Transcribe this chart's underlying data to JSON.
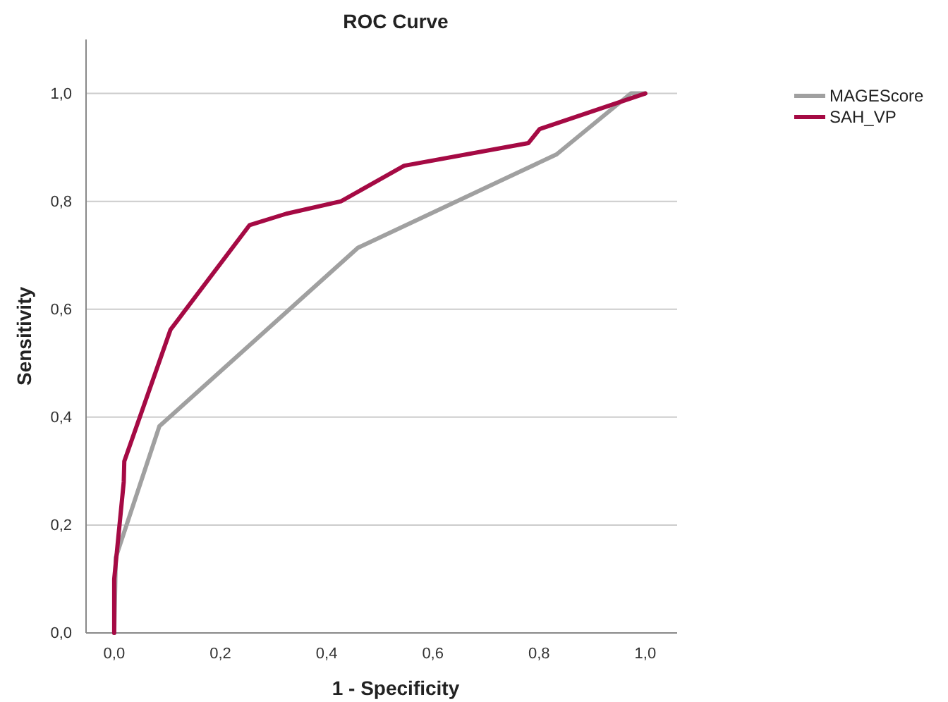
{
  "chart_data": {
    "type": "line",
    "title": "ROC Curve",
    "xlabel": "1 - Specificity",
    "ylabel": "Sensitivity",
    "xlim": [
      -0.053,
      1.06
    ],
    "ylim": [
      0,
      1.1
    ],
    "xticks": [
      {
        "value": 0,
        "label": "0,0"
      },
      {
        "value": 0.2,
        "label": "0,2"
      },
      {
        "value": 0.4,
        "label": "0,4"
      },
      {
        "value": 0.6,
        "label": "0,6"
      },
      {
        "value": 0.8,
        "label": "0,8"
      },
      {
        "value": 1,
        "label": "1,0"
      }
    ],
    "yticks": [
      {
        "value": 0,
        "label": "0,0"
      },
      {
        "value": 0.2,
        "label": "0,2"
      },
      {
        "value": 0.4,
        "label": "0,4"
      },
      {
        "value": 0.6,
        "label": "0,6"
      },
      {
        "value": 0.8,
        "label": "0,8"
      },
      {
        "value": 1,
        "label": "1,0"
      }
    ],
    "grid": "y",
    "legend": "top right",
    "marker": "none",
    "line_style": "solid",
    "series": [
      {
        "name": "MAGEScore",
        "color": "#a0a0a0",
        "x": [
          0,
          0.003,
          0.085,
          0.459,
          0.833,
          0.973,
          1
        ],
        "values": [
          0,
          0.14,
          0.383,
          0.714,
          0.887,
          1,
          1
        ]
      },
      {
        "name": "SAH_VP",
        "color": "#a50a44",
        "x": [
          0,
          0,
          0.005,
          0.018,
          0.019,
          0.106,
          0.255,
          0.324,
          0.427,
          0.546,
          0.78,
          0.801,
          1
        ],
        "values": [
          0,
          0.1,
          0.15,
          0.28,
          0.318,
          0.562,
          0.756,
          0.777,
          0.8,
          0.866,
          0.908,
          0.934,
          1
        ]
      }
    ]
  }
}
